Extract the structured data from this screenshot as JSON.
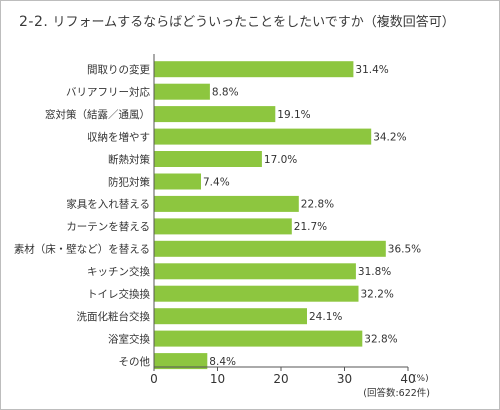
{
  "title": {
    "number": "2-2.",
    "text": "リフォームするならばどういったことをしたいですか（複数回答可）"
  },
  "chart_data": {
    "type": "bar",
    "orientation": "horizontal",
    "categories": [
      "間取りの変更",
      "バリアフリー対応",
      "窓対策（結露／通風）",
      "収納を増やす",
      "断熱対策",
      "防犯対策",
      "家具を入れ替える",
      "カーテンを替える",
      "素材（床・壁など）を替える",
      "キッチン交換",
      "トイレ交換換",
      "洗面化粧台交換",
      "浴室交換",
      "その他"
    ],
    "values": [
      31.4,
      8.8,
      19.1,
      34.2,
      17.0,
      7.4,
      22.8,
      21.7,
      36.5,
      31.8,
      32.2,
      24.1,
      32.8,
      8.4
    ],
    "value_labels": [
      "31.4%",
      "8.8%",
      "19.1%",
      "34.2%",
      "17.0%",
      "7.4%",
      "22.8%",
      "21.7%",
      "36.5%",
      "31.8%",
      "32.2%",
      "24.1%",
      "32.8%",
      "8.4%"
    ],
    "xlim": [
      0,
      40
    ],
    "xticks": [
      "0",
      "10",
      "20",
      "30",
      "40"
    ],
    "x_unit": "(%)",
    "note": "(回答数:622件)",
    "bar_color": "#8dc63f",
    "grid": false
  }
}
